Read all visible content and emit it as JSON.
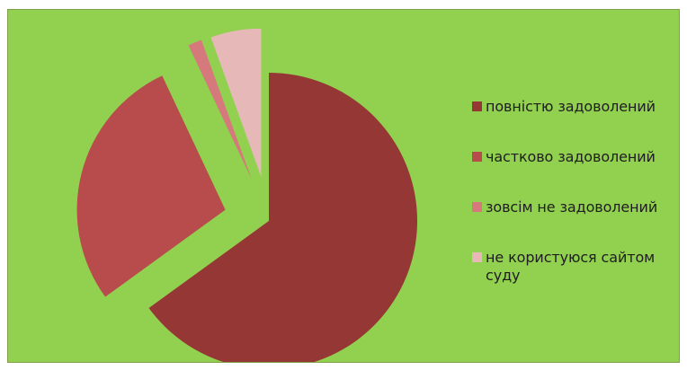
{
  "chart_data": {
    "type": "pie",
    "title": "",
    "exploded": true,
    "start_angle_deg": 0,
    "direction": "clockwise",
    "categories": [
      "повністю задоволений",
      "частково задоволений",
      "зовсім не задоволений",
      "не користуюся сайтом суду"
    ],
    "values": [
      65,
      28,
      1.5,
      5.5
    ],
    "unit": "%",
    "legend_position": "right",
    "background_color": "#92d050",
    "colors": [
      "#953735",
      "#b84b4b",
      "#d5797c",
      "#e6b9b8"
    ]
  }
}
